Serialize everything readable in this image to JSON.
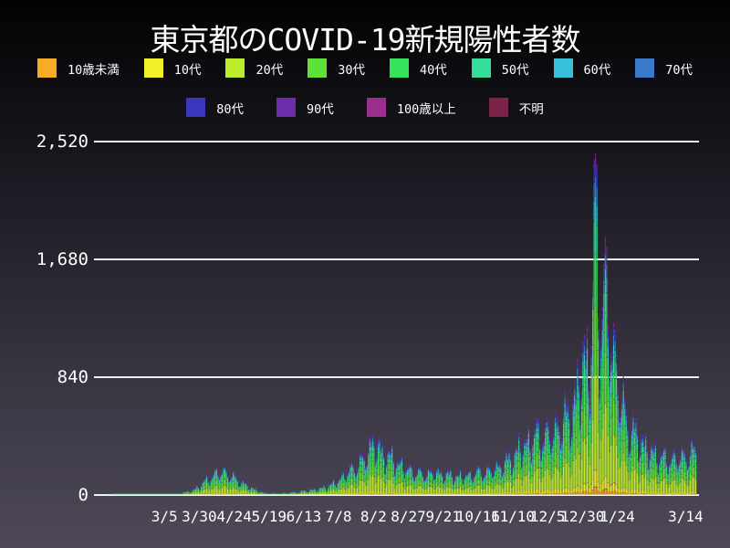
{
  "title": "東京都のCOVID-19新規陽性者数",
  "colors": {
    "background_top": "#020203",
    "background_bottom": "#4e4857",
    "grid": "#f2f2f4",
    "text": "#ffffff"
  },
  "legend": {
    "row_split": 8
  },
  "chart_data": {
    "type": "bar",
    "stacked": true,
    "title": "東京都のCOVID-19新規陽性者数",
    "xlabel": "",
    "ylabel": "",
    "ylim": [
      0,
      2520
    ],
    "grid": "horizontal",
    "legend_position": "top",
    "yticks": [
      {
        "v": 0,
        "label": "0"
      },
      {
        "v": 840,
        "label": "840"
      },
      {
        "v": 1680,
        "label": "1,680"
      },
      {
        "v": 2520,
        "label": "2,520"
      }
    ],
    "x_start_date": "2020-01-19",
    "x_total_days": 428,
    "xticks": [
      {
        "day": 46,
        "label": "3/5"
      },
      {
        "day": 71,
        "label": "3/30"
      },
      {
        "day": 96,
        "label": "4/24"
      },
      {
        "day": 121,
        "label": "5/19"
      },
      {
        "day": 146,
        "label": "6/13"
      },
      {
        "day": 171,
        "label": "7/8"
      },
      {
        "day": 196,
        "label": "8/2"
      },
      {
        "day": 221,
        "label": "8/27"
      },
      {
        "day": 246,
        "label": "9/21"
      },
      {
        "day": 271,
        "label": "10/16"
      },
      {
        "day": 296,
        "label": "11/10"
      },
      {
        "day": 321,
        "label": "12/5"
      },
      {
        "day": 346,
        "label": "12/30"
      },
      {
        "day": 371,
        "label": "1/24"
      },
      {
        "day": 420,
        "label": "3/14"
      }
    ],
    "series": [
      {
        "id": "under-10",
        "name": "10歳未満",
        "color": "#F8AC26",
        "fraction": 0.025
      },
      {
        "id": "10s",
        "name": "10代",
        "color": "#F2F02B",
        "fraction": 0.05
      },
      {
        "id": "20s",
        "name": "20代",
        "color": "#BDEC2C",
        "fraction": 0.28
      },
      {
        "id": "30s",
        "name": "30代",
        "color": "#5FE238",
        "fraction": 0.2
      },
      {
        "id": "40s",
        "name": "40代",
        "color": "#37E35A",
        "fraction": 0.15
      },
      {
        "id": "50s",
        "name": "50代",
        "color": "#34DE99",
        "fraction": 0.11
      },
      {
        "id": "60s",
        "name": "60代",
        "color": "#37C1DB",
        "fraction": 0.06
      },
      {
        "id": "70s",
        "name": "70代",
        "color": "#3B79CA",
        "fraction": 0.055
      },
      {
        "id": "80s",
        "name": "80代",
        "color": "#3A36BE",
        "fraction": 0.04
      },
      {
        "id": "90s",
        "name": "90代",
        "color": "#6C2CAC",
        "fraction": 0.02
      },
      {
        "id": "100-plus",
        "name": "100歳以上",
        "color": "#9B2E8C",
        "fraction": 0.003
      },
      {
        "id": "unknown",
        "name": "不明",
        "color": "#7B2349",
        "fraction": 0.007
      }
    ],
    "weekday_factors_sun_to_sat": [
      0.9,
      0.62,
      0.78,
      1.0,
      1.15,
      1.12,
      1.18
    ],
    "daily_total_control_points": [
      [
        0,
        0
      ],
      [
        4,
        0
      ],
      [
        5,
        6
      ],
      [
        6,
        0
      ],
      [
        7,
        0
      ],
      [
        8,
        5
      ],
      [
        9,
        0
      ],
      [
        18,
        1
      ],
      [
        25,
        4
      ],
      [
        42,
        5
      ],
      [
        56,
        12
      ],
      [
        66,
        35
      ],
      [
        77,
        120
      ],
      [
        83,
        170
      ],
      [
        89,
        180
      ],
      [
        97,
        120
      ],
      [
        107,
        60
      ],
      [
        117,
        15
      ],
      [
        127,
        12
      ],
      [
        138,
        20
      ],
      [
        148,
        35
      ],
      [
        158,
        50
      ],
      [
        168,
        90
      ],
      [
        178,
        180
      ],
      [
        188,
        260
      ],
      [
        195,
        400
      ],
      [
        202,
        320
      ],
      [
        209,
        280
      ],
      [
        219,
        200
      ],
      [
        230,
        160
      ],
      [
        240,
        170
      ],
      [
        250,
        150
      ],
      [
        260,
        140
      ],
      [
        270,
        170
      ],
      [
        280,
        185
      ],
      [
        291,
        250
      ],
      [
        301,
        350
      ],
      [
        311,
        450
      ],
      [
        321,
        450
      ],
      [
        331,
        550
      ],
      [
        341,
        700
      ],
      [
        347,
        1100
      ],
      [
        350,
        900
      ],
      [
        353,
        1400
      ],
      [
        354,
        2200
      ],
      [
        355,
        2100
      ],
      [
        356,
        1900
      ],
      [
        358,
        1300
      ],
      [
        361,
        1500
      ],
      [
        364,
        1400
      ],
      [
        368,
        1100
      ],
      [
        372,
        800
      ],
      [
        379,
        500
      ],
      [
        385,
        450
      ],
      [
        392,
        350
      ],
      [
        399,
        300
      ],
      [
        407,
        270
      ],
      [
        413,
        280
      ],
      [
        420,
        300
      ],
      [
        427,
        330
      ]
    ]
  }
}
